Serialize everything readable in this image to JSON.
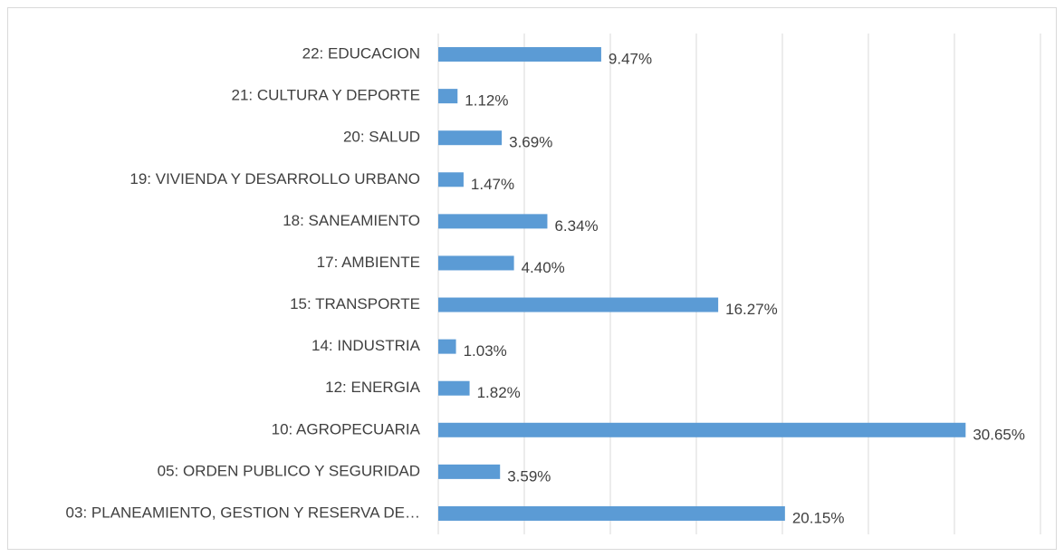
{
  "chart_data": {
    "type": "barh",
    "categories": [
      "22: EDUCACION",
      "21: CULTURA Y DEPORTE",
      "20: SALUD",
      "19: VIVIENDA Y DESARROLLO URBANO",
      "18: SANEAMIENTO",
      "17: AMBIENTE",
      "15: TRANSPORTE",
      "14: INDUSTRIA",
      "12: ENERGIA",
      "10: AGROPECUARIA",
      "05: ORDEN PUBLICO Y SEGURIDAD",
      "03: PLANEAMIENTO, GESTION Y RESERVA DE…"
    ],
    "values": [
      9.47,
      1.12,
      3.69,
      1.47,
      6.34,
      4.4,
      16.27,
      1.03,
      1.82,
      30.65,
      3.59,
      20.15
    ],
    "value_labels": [
      "9.47%",
      "1.12%",
      "3.69%",
      "1.47%",
      "6.34%",
      "4.40%",
      "16.27%",
      "1.03%",
      "1.82%",
      "30.65%",
      "3.59%",
      "20.15%"
    ],
    "color": "#5b9bd5",
    "xlim": [
      0,
      35
    ],
    "xticks": [
      0,
      5,
      10,
      15,
      20,
      25,
      30,
      35
    ],
    "grid": true
  }
}
